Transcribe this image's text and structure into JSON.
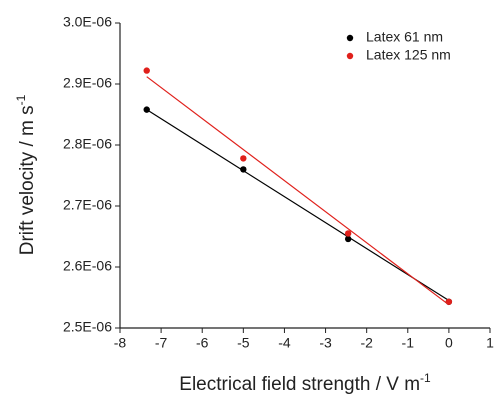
{
  "chart_data": {
    "type": "scatter",
    "xlabel": {
      "text": "Electrical field strength / V m",
      "superscript": "-1"
    },
    "ylabel": {
      "text": "Drift velocity / m s",
      "superscript": "-1"
    },
    "xlim": [
      -8,
      1
    ],
    "xticks": [
      -8,
      -7,
      -6,
      -5,
      -4,
      -3,
      -2,
      -1,
      0,
      1
    ],
    "ylim": [
      2.5e-06,
      3e-06
    ],
    "yticks": [
      {
        "value": 2.5e-06,
        "label": "2.5E-06"
      },
      {
        "value": 2.6e-06,
        "label": "2.6E-06"
      },
      {
        "value": 2.7e-06,
        "label": "2.7E-06"
      },
      {
        "value": 2.8e-06,
        "label": "2.8E-06"
      },
      {
        "value": 2.9e-06,
        "label": "2.9E-06"
      },
      {
        "value": 3e-06,
        "label": "3.0E-06"
      }
    ],
    "legend": "top-right",
    "series": [
      {
        "name": "Latex 61 nm",
        "color": "#000000",
        "x": [
          -7.35,
          -5,
          -2.45,
          0
        ],
        "values": [
          2.858e-06,
          2.76e-06,
          2.646e-06,
          2.543e-06
        ],
        "fit": {
          "x": [
            -7.35,
            0
          ],
          "values": [
            2.858e-06,
            2.545e-06
          ]
        }
      },
      {
        "name": "Latex 125 nm",
        "color": "#e0201b",
        "x": [
          -7.35,
          -5,
          -2.45,
          0
        ],
        "values": [
          2.922e-06,
          2.778e-06,
          2.655e-06,
          2.543e-06
        ],
        "fit": {
          "x": [
            -7.35,
            0
          ],
          "values": [
            2.912e-06,
            2.538e-06
          ]
        }
      }
    ]
  }
}
